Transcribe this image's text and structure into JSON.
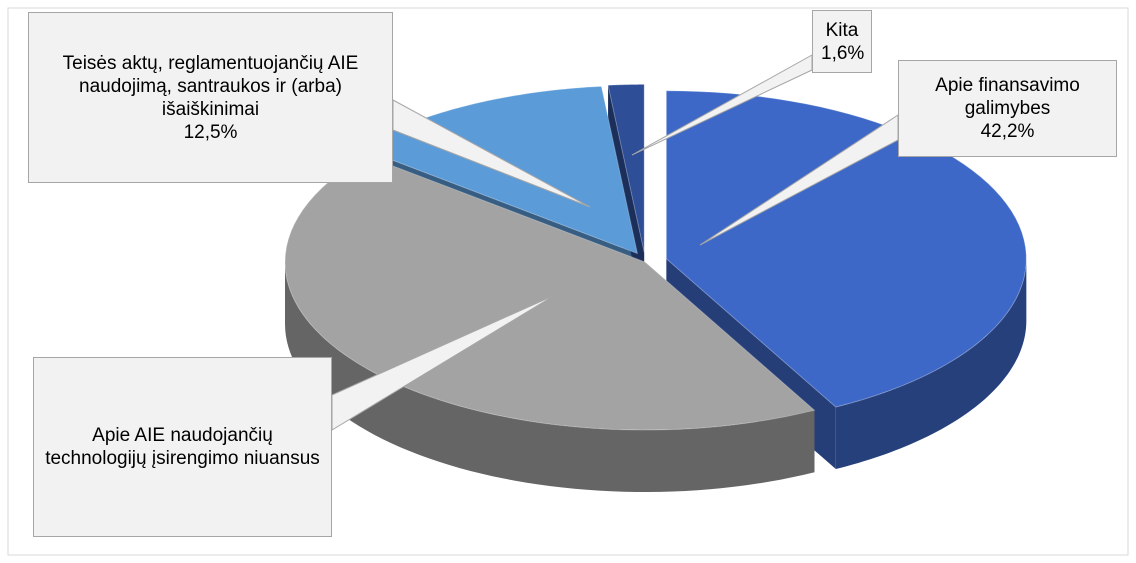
{
  "chart_data": {
    "type": "pie",
    "categories": [
      "Apie finansavimo galimybes",
      "Apie AIE naudojančių technologijų įsirengimo niuansus",
      "Teisės aktų, reglamentuojančių AIE naudojimą, santraukos ir (arba) išaiškinimai",
      "Kita"
    ],
    "values": [
      42.2,
      43.7,
      12.5,
      1.6
    ],
    "value_labels": [
      "42,2%",
      null,
      "12,5%",
      "1,6%"
    ],
    "colors": [
      "#3d68c8",
      "#a3a3a3",
      "#5b9bd8",
      "#2e4f98"
    ]
  }
}
